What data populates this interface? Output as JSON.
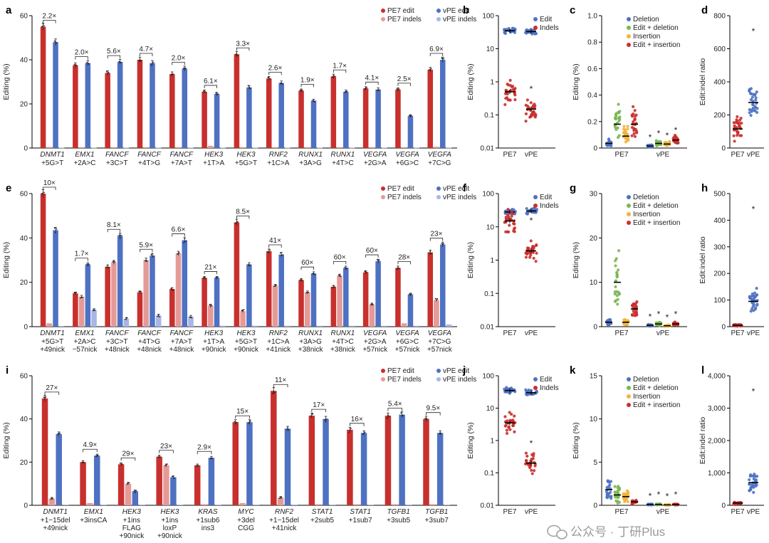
{
  "colors": {
    "pe7_edit": "#c8302d",
    "pe7_indels": "#e69a97",
    "vpe_edit": "#4e71c2",
    "vpe_indels": "#a7b6e6",
    "deletion": "#4e71c2",
    "edit_deletion": "#7cb652",
    "insertion": "#f2b33d",
    "edit_insertion": "#c8302d",
    "black": "#000000"
  },
  "watermark": {
    "icon_name": "wechat-icon",
    "text": "公众号 · 丁研Plus"
  },
  "chart_data": [
    {
      "panel": "a",
      "type": "bar",
      "ylabel": "Editing (%)",
      "ylim": [
        0,
        60
      ],
      "yticks": [
        0,
        20,
        40,
        60
      ],
      "legend": [
        "PE7 edit",
        "PE7 indels",
        "vPE edit",
        "vPE indels"
      ],
      "groups": [
        {
          "gene": "DNMT1",
          "mut": [
            "+5G>T"
          ],
          "fold": "2.2×",
          "pe7_edit": 55,
          "pe7_indels": 0.5,
          "vpe_edit": 48,
          "vpe_indels": 0.2
        },
        {
          "gene": "EMX1",
          "mut": [
            "+2A>C"
          ],
          "fold": "2.0×",
          "pe7_edit": 37.5,
          "pe7_indels": 0.4,
          "vpe_edit": 38.5,
          "vpe_indels": 0.2
        },
        {
          "gene": "FANCF",
          "mut": [
            "+3C>T"
          ],
          "fold": "5.6×",
          "pe7_edit": 34,
          "pe7_indels": 0.4,
          "vpe_edit": 39,
          "vpe_indels": 0.2
        },
        {
          "gene": "FANCF",
          "mut": [
            "+4T>G"
          ],
          "fold": "4.7×",
          "pe7_edit": 40,
          "pe7_indels": 0.4,
          "vpe_edit": 38.5,
          "vpe_indels": 0.2
        },
        {
          "gene": "FANCF",
          "mut": [
            "+7A>T"
          ],
          "fold": "2.0×",
          "pe7_edit": 33.5,
          "pe7_indels": 0.4,
          "vpe_edit": 36,
          "vpe_indels": 0.2
        },
        {
          "gene": "HEK3",
          "mut": [
            "+1T>A"
          ],
          "fold": "6.1×",
          "pe7_edit": 25.5,
          "pe7_indels": 1.0,
          "vpe_edit": 24.5,
          "vpe_indels": 0.2
        },
        {
          "gene": "HEK3",
          "mut": [
            "+5G>T"
          ],
          "fold": "3.3×",
          "pe7_edit": 42.5,
          "pe7_indels": 0.4,
          "vpe_edit": 27.5,
          "vpe_indels": 0.2
        },
        {
          "gene": "RNF2",
          "mut": [
            "+1C>A"
          ],
          "fold": "2.6×",
          "pe7_edit": 31.5,
          "pe7_indels": 0.4,
          "vpe_edit": 29.5,
          "vpe_indels": 0.2
        },
        {
          "gene": "RUNX1",
          "mut": [
            "+3A>G"
          ],
          "fold": "1.9×",
          "pe7_edit": 26,
          "pe7_indels": 0.4,
          "vpe_edit": 21.5,
          "vpe_indels": 0.2
        },
        {
          "gene": "RUNX1",
          "mut": [
            "+4T>C"
          ],
          "fold": "1.7×",
          "pe7_edit": 32.5,
          "pe7_indels": 0.4,
          "vpe_edit": 25.5,
          "vpe_indels": 0.2
        },
        {
          "gene": "VEGFA",
          "mut": [
            "+2G>A"
          ],
          "fold": "4.1×",
          "pe7_edit": 27,
          "pe7_indels": 0.4,
          "vpe_edit": 26.5,
          "vpe_indels": 0.2
        },
        {
          "gene": "VEGFA",
          "mut": [
            "+6G>C"
          ],
          "fold": "2.5×",
          "pe7_edit": 26.5,
          "pe7_indels": 0.4,
          "vpe_edit": 14.5,
          "vpe_indels": 0.2
        },
        {
          "gene": "VEGFA",
          "mut": [
            "+7C>G"
          ],
          "fold": "6.9×",
          "pe7_edit": 35.5,
          "pe7_indels": 0.6,
          "vpe_edit": 40,
          "vpe_indels": 0.2
        }
      ]
    },
    {
      "panel": "b",
      "type": "scatter",
      "scale": "log",
      "ylabel": "Editing (%)",
      "ylim": [
        0.01,
        100
      ],
      "yticks": [
        "0.01",
        "0.1",
        "1",
        "10",
        "100"
      ],
      "categories": [
        "PE7",
        "vPE"
      ],
      "legend": [
        "Edit",
        "Indels"
      ],
      "star": "*",
      "series": [
        {
          "name": "Edit",
          "means": [
            35,
            33
          ]
        },
        {
          "name": "Indels",
          "means": [
            0.5,
            0.15
          ]
        }
      ]
    },
    {
      "panel": "c",
      "type": "scatter",
      "ylabel": "Editing (%)",
      "ylim": [
        0,
        1.0
      ],
      "yticks": [
        "0",
        "0.2",
        "0.4",
        "0.6",
        "0.8",
        "1.0"
      ],
      "categories": [
        "PE7",
        "vPE"
      ],
      "legend": [
        "Deletion",
        "Edit + deletion",
        "Insertion",
        "Edit + insertion"
      ],
      "stars": [
        "*",
        "*",
        "*",
        "*"
      ],
      "series": [
        {
          "name": "Deletion",
          "means": [
            0.035,
            0.015
          ]
        },
        {
          "name": "Edit + deletion",
          "means": [
            0.18,
            0.035
          ]
        },
        {
          "name": "Insertion",
          "means": [
            0.09,
            0.03
          ]
        },
        {
          "name": "Edit + insertion",
          "means": [
            0.18,
            0.06
          ]
        }
      ]
    },
    {
      "panel": "d",
      "type": "scatter",
      "ylabel": "Edit:indel ratio",
      "ylim": [
        0,
        800
      ],
      "yticks": [
        "0",
        "200",
        "400",
        "600",
        "800"
      ],
      "categories": [
        "PE7",
        "vPE"
      ],
      "star": "*",
      "series": [
        {
          "name": "Ratio",
          "means": [
            115,
            275
          ]
        }
      ]
    },
    {
      "panel": "e",
      "type": "bar",
      "ylabel": "Editing (%)",
      "ylim": [
        0,
        60
      ],
      "yticks": [
        0,
        20,
        40,
        60
      ],
      "legend": [
        "PE7 edit",
        "PE7 indels",
        "vPE edit",
        "vPE indels"
      ],
      "groups": [
        {
          "gene": "DNMT1",
          "mut": [
            "+5G>T",
            "+49nick"
          ],
          "fold": "10×",
          "pe7_edit": 60,
          "pe7_indels": 1.5,
          "vpe_edit": 43.5,
          "vpe_indels": 0.3
        },
        {
          "gene": "EMX1",
          "mut": [
            "+2A>C",
            "−57nick"
          ],
          "fold": "1.7×",
          "pe7_edit": 15,
          "pe7_indels": 13.5,
          "vpe_edit": 28,
          "vpe_indels": 7.5
        },
        {
          "gene": "FANCF",
          "mut": [
            "+3C>T",
            "+48nick"
          ],
          "fold": "8.1×",
          "pe7_edit": 27,
          "pe7_indels": 29,
          "vpe_edit": 41,
          "vpe_indels": 3.5
        },
        {
          "gene": "FANCF",
          "mut": [
            "+4T>G",
            "+48nick"
          ],
          "fold": "5.9×",
          "pe7_edit": 15.5,
          "pe7_indels": 30,
          "vpe_edit": 32,
          "vpe_indels": 5
        },
        {
          "gene": "FANCF",
          "mut": [
            "+7A>T",
            "+48nick"
          ],
          "fold": "6.6×",
          "pe7_edit": 17,
          "pe7_indels": 33,
          "vpe_edit": 39,
          "vpe_indels": 4.5
        },
        {
          "gene": "HEK3",
          "mut": [
            "+1T>A",
            "+90nick"
          ],
          "fold": "21×",
          "pe7_edit": 22,
          "pe7_indels": 9.5,
          "vpe_edit": 22,
          "vpe_indels": 0.4
        },
        {
          "gene": "HEK3",
          "mut": [
            "+5G>T",
            "+90nick"
          ],
          "fold": "8.5×",
          "pe7_edit": 47,
          "pe7_indels": 7,
          "vpe_edit": 28,
          "vpe_indels": 0.4
        },
        {
          "gene": "RNF2",
          "mut": [
            "+1C>A",
            "+41nick"
          ],
          "fold": "41×",
          "pe7_edit": 34,
          "pe7_indels": 18.5,
          "vpe_edit": 32.5,
          "vpe_indels": 0.4
        },
        {
          "gene": "RUNX1",
          "mut": [
            "+3A>G",
            "+38nick"
          ],
          "fold": "60×",
          "pe7_edit": 21,
          "pe7_indels": 15.5,
          "vpe_edit": 24,
          "vpe_indels": 0.4
        },
        {
          "gene": "RUNX1",
          "mut": [
            "+4T>C",
            "+38nick"
          ],
          "fold": "60×",
          "pe7_edit": 18,
          "pe7_indels": 23,
          "vpe_edit": 26.5,
          "vpe_indels": 0.4
        },
        {
          "gene": "VEGFA",
          "mut": [
            "+2G>A",
            "+57nick"
          ],
          "fold": "60×",
          "pe7_edit": 24.5,
          "pe7_indels": 10,
          "vpe_edit": 29.5,
          "vpe_indels": 0.4
        },
        {
          "gene": "VEGFA",
          "mut": [
            "+6G>C",
            "+57nick"
          ],
          "fold": "28×",
          "pe7_edit": 26.5,
          "pe7_indels": 1.5,
          "vpe_edit": 14.5,
          "vpe_indels": 0.4
        },
        {
          "gene": "VEGFA",
          "mut": [
            "+7C>G",
            "+57nick"
          ],
          "fold": "23×",
          "pe7_edit": 33.5,
          "pe7_indels": 12,
          "vpe_edit": 37,
          "vpe_indels": 1
        }
      ]
    },
    {
      "panel": "f",
      "type": "scatter",
      "scale": "log",
      "ylabel": "Editing (%)",
      "ylim": [
        0.01,
        100
      ],
      "yticks": [
        "0.01",
        "0.1",
        "1",
        "10",
        "100"
      ],
      "categories": [
        "PE7",
        "vPE"
      ],
      "legend": [
        "Edit",
        "Indels"
      ],
      "star": "*",
      "series": [
        {
          "name": "Edit",
          "means": [
            28,
            30
          ]
        },
        {
          "name": "Indels",
          "means": [
            15,
            1.9
          ]
        }
      ]
    },
    {
      "panel": "g",
      "type": "scatter",
      "ylabel": "Editing (%)",
      "ylim": [
        0,
        30
      ],
      "yticks": [
        "0",
        "10",
        "20",
        "30"
      ],
      "categories": [
        "PE7",
        "vPE"
      ],
      "legend": [
        "Deletion",
        "Edit + deletion",
        "Insertion",
        "Edit + insertion"
      ],
      "stars": [
        "*",
        "*",
        "*",
        "*"
      ],
      "series": [
        {
          "name": "Deletion",
          "means": [
            1,
            0.3
          ]
        },
        {
          "name": "Edit + deletion",
          "means": [
            10,
            0.6
          ]
        },
        {
          "name": "Insertion",
          "means": [
            1,
            0.2
          ]
        },
        {
          "name": "Edit + insertion",
          "means": [
            4,
            0.6
          ]
        }
      ]
    },
    {
      "panel": "h",
      "type": "scatter",
      "ylabel": "Edit:indel ratio",
      "ylim": [
        0,
        500
      ],
      "yticks": [
        "0",
        "100",
        "200",
        "300",
        "400",
        "500"
      ],
      "categories": [
        "PE7",
        "vPE"
      ],
      "star": "*",
      "series": [
        {
          "name": "Ratio",
          "means": [
            5,
            95
          ]
        }
      ]
    },
    {
      "panel": "i",
      "type": "bar",
      "ylabel": "Editing (%)",
      "ylim": [
        0,
        60
      ],
      "yticks": [
        0,
        20,
        40,
        60
      ],
      "legend": [
        "PE7 edit",
        "PE7 indels",
        "vPE edit",
        "vPE indels"
      ],
      "groups": [
        {
          "gene": "DNMT1",
          "mut": [
            "+1−15del",
            "+49nick"
          ],
          "fold": "27×",
          "pe7_edit": 49.5,
          "pe7_indels": 3,
          "vpe_edit": 33,
          "vpe_indels": 0.3
        },
        {
          "gene": "EMX1",
          "mut": [
            "+3insCA"
          ],
          "fold": "4.9×",
          "pe7_edit": 20,
          "pe7_indels": 1,
          "vpe_edit": 23,
          "vpe_indels": 0.3
        },
        {
          "gene": "HEK3",
          "mut": [
            "+1ins",
            "FLAG",
            "+90nick"
          ],
          "fold": "29×",
          "pe7_edit": 19,
          "pe7_indels": 10,
          "vpe_edit": 6.5,
          "vpe_indels": 0.3
        },
        {
          "gene": "HEK3",
          "mut": [
            "+1ins",
            "loxP",
            "+90nick"
          ],
          "fold": "23×",
          "pe7_edit": 22.5,
          "pe7_indels": 18.5,
          "vpe_edit": 13,
          "vpe_indels": 0.3
        },
        {
          "gene": "KRAS",
          "mut": [
            "+1sub6",
            "ins3"
          ],
          "fold": "2.9×",
          "pe7_edit": 18.5,
          "pe7_indels": 0.5,
          "vpe_edit": 22,
          "vpe_indels": 0.3
        },
        {
          "gene": "MYC",
          "mut": [
            "+3del",
            "CGG"
          ],
          "fold": "15×",
          "pe7_edit": 38.5,
          "pe7_indels": 1,
          "vpe_edit": 38.5,
          "vpe_indels": 0.3
        },
        {
          "gene": "RNF2",
          "mut": [
            "+1−15del",
            "+41nick"
          ],
          "fold": "11×",
          "pe7_edit": 53,
          "pe7_indels": 3.5,
          "vpe_edit": 35.5,
          "vpe_indels": 0.3
        },
        {
          "gene": "STAT1",
          "mut": [
            "+2sub5"
          ],
          "fold": "17×",
          "pe7_edit": 41.5,
          "pe7_indels": 0.5,
          "vpe_edit": 40,
          "vpe_indels": 0.3
        },
        {
          "gene": "STAT1",
          "mut": [
            "+1sub7"
          ],
          "fold": "16×",
          "pe7_edit": 35,
          "pe7_indels": 0.5,
          "vpe_edit": 33.5,
          "vpe_indels": 0.3
        },
        {
          "gene": "TGFB1",
          "mut": [
            "+3sub5"
          ],
          "fold": "5.4×",
          "pe7_edit": 41.5,
          "pe7_indels": 0.5,
          "vpe_edit": 42,
          "vpe_indels": 0.3
        },
        {
          "gene": "TGFB1",
          "mut": [
            "+3sub7"
          ],
          "fold": "9.5×",
          "pe7_edit": 40,
          "pe7_indels": 0.5,
          "vpe_edit": 33.5,
          "vpe_indels": 0.3
        }
      ]
    },
    {
      "panel": "j",
      "type": "scatter",
      "scale": "log",
      "ylabel": "Editing (%)",
      "ylim": [
        0.01,
        100
      ],
      "yticks": [
        "0.01",
        "0.1",
        "1",
        "10",
        "100"
      ],
      "categories": [
        "PE7",
        "vPE"
      ],
      "legend": [
        "Edit",
        "Indels"
      ],
      "star": "*",
      "series": [
        {
          "name": "Edit",
          "means": [
            35,
            30
          ]
        },
        {
          "name": "Indels",
          "means": [
            3.5,
            0.2
          ]
        }
      ]
    },
    {
      "panel": "k",
      "type": "scatter",
      "ylabel": "Editing (%)",
      "ylim": [
        0,
        15
      ],
      "yticks": [
        "0",
        "5",
        "10",
        "15"
      ],
      "categories": [
        "PE7",
        "vPE"
      ],
      "legend": [
        "Deletion",
        "Edit + deletion",
        "Insertion",
        "Edit + insertion"
      ],
      "stars": [
        "*",
        "*",
        "*",
        "*"
      ],
      "series": [
        {
          "name": "Deletion",
          "means": [
            1.8,
            0.1
          ]
        },
        {
          "name": "Edit + deletion",
          "means": [
            1.2,
            0.1
          ]
        },
        {
          "name": "Insertion",
          "means": [
            1.0,
            0.05
          ]
        },
        {
          "name": "Edit + insertion",
          "means": [
            0.4,
            0.1
          ]
        }
      ]
    },
    {
      "panel": "l",
      "type": "scatter",
      "ylabel": "Edit:indel ratio",
      "ylim": [
        0,
        4000
      ],
      "yticks": [
        "0",
        "1,000",
        "2,000",
        "3,000",
        "4,000"
      ],
      "categories": [
        "PE7",
        "vPE"
      ],
      "star": "*",
      "series": [
        {
          "name": "Ratio",
          "means": [
            70,
            700
          ]
        }
      ]
    }
  ]
}
